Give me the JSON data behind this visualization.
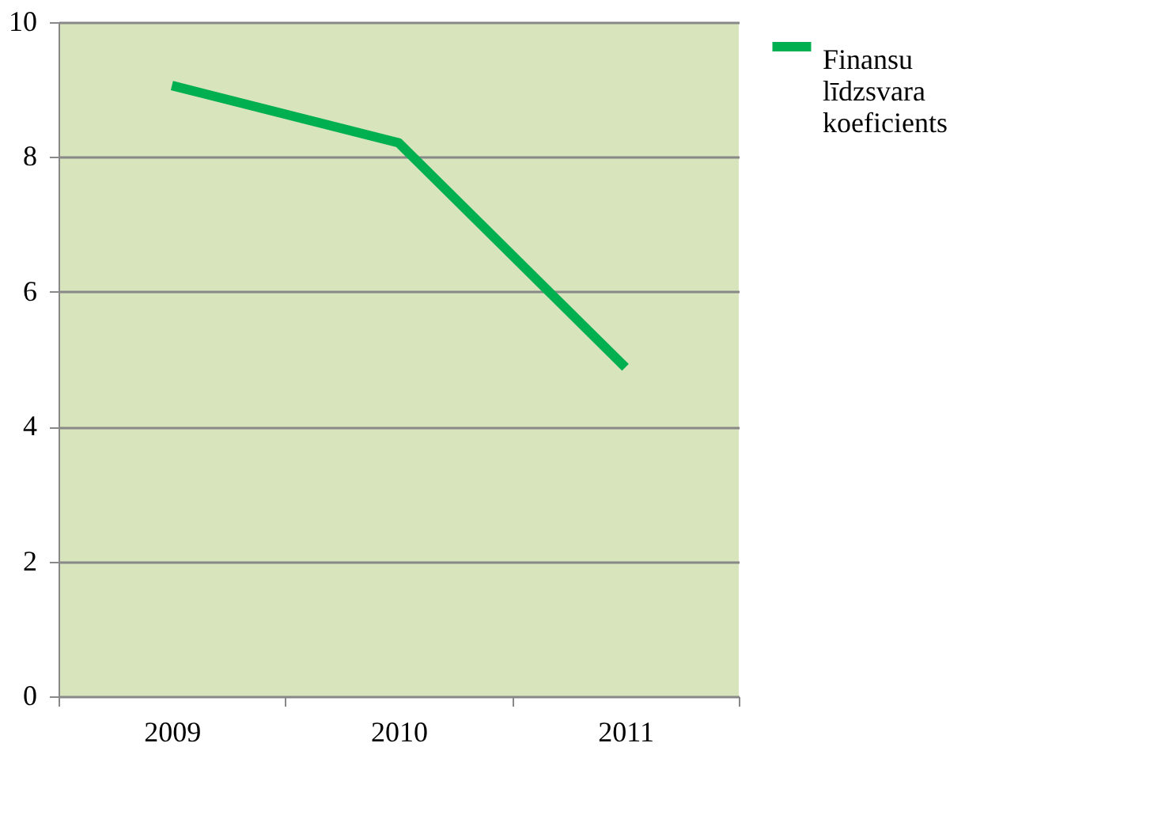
{
  "chart_data": {
    "type": "line",
    "categories": [
      "2009",
      "2010",
      "2011"
    ],
    "series": [
      {
        "name": "Finansu līdzsvara koeficients",
        "color": "#00b050",
        "values": [
          9.06,
          8.21,
          4.88
        ]
      }
    ],
    "ylim": [
      0,
      10
    ],
    "yticks": [
      0,
      2,
      4,
      6,
      8,
      10
    ],
    "grid": "y",
    "legend": "right",
    "marker": "none",
    "line_style": "solid"
  }
}
